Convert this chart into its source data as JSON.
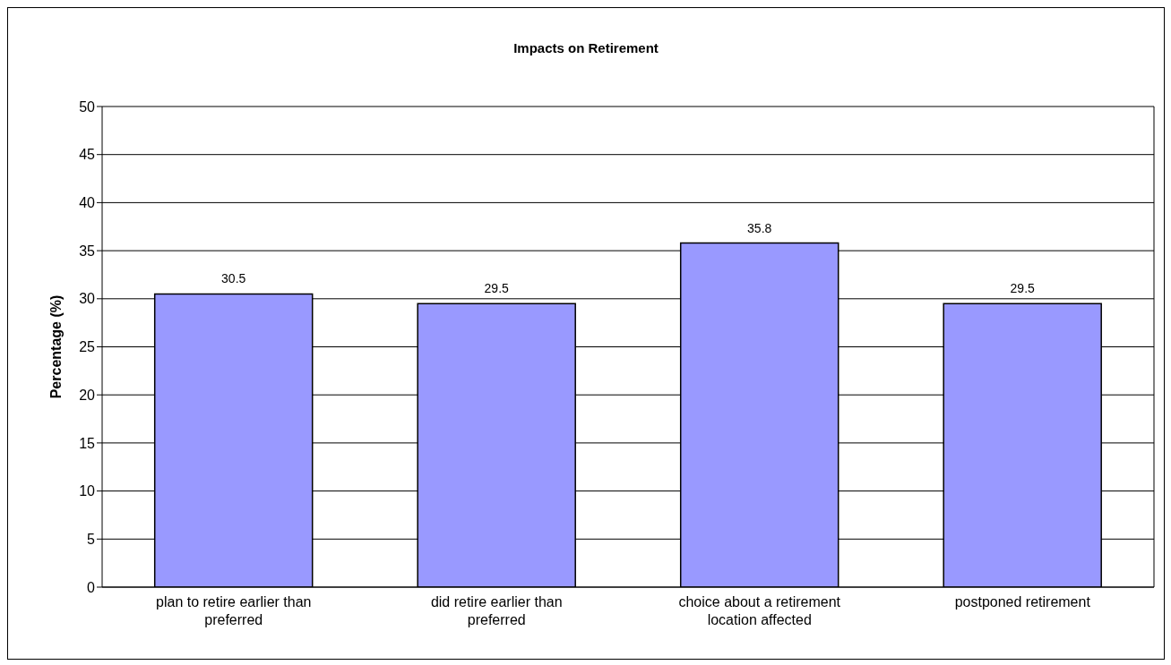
{
  "chart_data": {
    "type": "bar",
    "title": "Impacts on Retirement",
    "ylabel": "Percentage (%)",
    "categories": [
      "plan to retire earlier than preferred",
      "did retire earlier than preferred",
      "choice about a retirement location affected",
      "postponed retirement"
    ],
    "values": [
      30.5,
      29.5,
      35.8,
      29.5
    ],
    "color": "#9999ff",
    "ylim": [
      0,
      50
    ],
    "yticks": [
      0,
      5,
      10,
      15,
      20,
      25,
      30,
      35,
      40,
      45,
      50
    ],
    "grid": "y",
    "data_labels": true
  }
}
